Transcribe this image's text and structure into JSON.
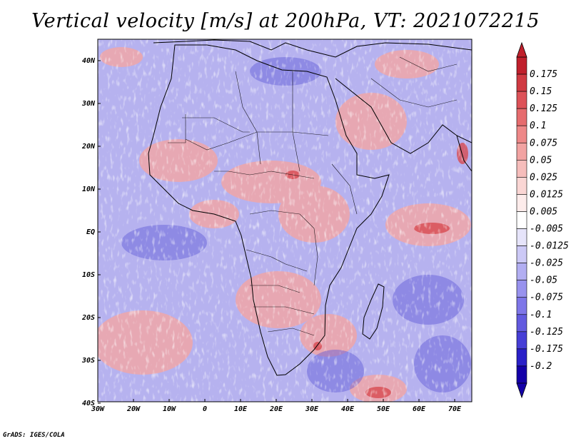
{
  "title": "Vertical velocity [m/s] at 200hPa, VT: 2021072215",
  "credit": "GrADS: IGES/COLA",
  "axes": {
    "lat_labels": [
      "40N",
      "30N",
      "20N",
      "10N",
      "EQ",
      "10S",
      "20S",
      "30S",
      "40S"
    ],
    "lon_labels": [
      "30W",
      "20W",
      "10W",
      "0",
      "10E",
      "20E",
      "30E",
      "40E",
      "50E",
      "60E",
      "70E"
    ]
  },
  "colorbar": {
    "labels": [
      "0.175",
      "0.15",
      "0.125",
      "0.1",
      "0.075",
      "0.05",
      "0.025",
      "0.0125",
      "0.005",
      "-0.005",
      "-0.0125",
      "-0.025",
      "-0.05",
      "-0.075",
      "-0.1",
      "-0.125",
      "-0.175",
      "-0.2"
    ],
    "colors": [
      "#c0202c",
      "#d03a42",
      "#dd5258",
      "#e66c6e",
      "#ee8888",
      "#f2a3a2",
      "#f6bdbb",
      "#fad6d4",
      "#fdeceb",
      "#ffffff",
      "#e6e4fa",
      "#ccc9f6",
      "#b2aef2",
      "#9892ee",
      "#7e76e8",
      "#625adf",
      "#463ed6",
      "#2a20c8",
      "#1400a8"
    ]
  },
  "map": {
    "lon_range": [
      -30,
      75
    ],
    "lat_range": [
      -40,
      45
    ],
    "ocean_color": "#b8b4f0",
    "red_color": "#f0a8a8"
  }
}
